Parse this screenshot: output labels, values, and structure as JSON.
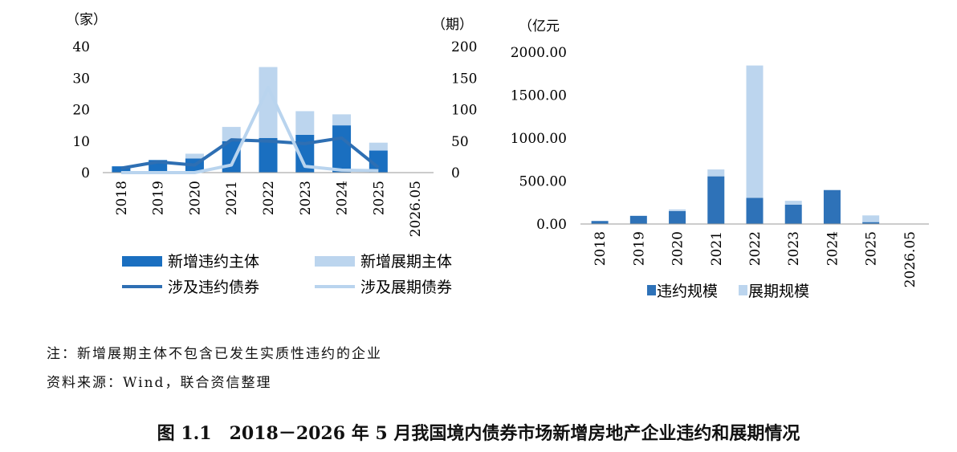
{
  "chart_data": [
    {
      "type": "bar",
      "categories": [
        "2018",
        "2019",
        "2020",
        "2021",
        "2022",
        "2023",
        "2024",
        "2025",
        "2026.05"
      ],
      "left_axis_unit": "（家）",
      "right_axis_unit": "（期）",
      "ylim_left": [
        0,
        40
      ],
      "yticks_left": [
        "0",
        "10",
        "20",
        "30",
        "40"
      ],
      "ylim_right": [
        0,
        200
      ],
      "yticks_right": [
        "0",
        "50",
        "100",
        "150",
        "200"
      ],
      "stacked": true,
      "bar_series": [
        {
          "name": "新增违约主体",
          "color": "#1a6fc0",
          "axis": "left",
          "values": [
            2,
            4,
            4.5,
            10,
            11,
            12,
            15,
            7,
            0
          ]
        },
        {
          "name": "新增展期主体",
          "color": "#bcd5ee",
          "axis": "left",
          "values": [
            0,
            0,
            1.5,
            4.5,
            22.5,
            7.5,
            3.5,
            2.5,
            0
          ]
        }
      ],
      "line_series": [
        {
          "name": "涉及违约债券",
          "color": "#2e6fb3",
          "axis": "right",
          "values": [
            7,
            17,
            12,
            52,
            50,
            46,
            55,
            8
          ]
        },
        {
          "name": "涉及展期债券",
          "color": "#b9d4ee",
          "axis": "right",
          "values": [
            0,
            0,
            0,
            12,
            135,
            10,
            4,
            3
          ]
        }
      ],
      "legend_position": "bottom",
      "grid": false
    },
    {
      "type": "bar",
      "categories": [
        "2018",
        "2019",
        "2020",
        "2021",
        "2022",
        "2023",
        "2024",
        "2025",
        "2026.05"
      ],
      "axis_unit": "（亿元",
      "ylim": [
        0,
        2000
      ],
      "yticks": [
        "0.00",
        "500.00",
        "1000.00",
        "1500.00",
        "2000.00"
      ],
      "stacked": true,
      "series": [
        {
          "name": "违约规模",
          "color": "#2e72b8",
          "values": [
            35,
            95,
            150,
            555,
            305,
            225,
            395,
            22,
            0
          ]
        },
        {
          "name": "展期规模",
          "color": "#bcd5ee",
          "values": [
            0,
            0,
            20,
            80,
            1540,
            45,
            0,
            78,
            0
          ]
        }
      ],
      "legend_position": "bottom",
      "grid": false
    }
  ],
  "notes": {
    "note1": "注：新增展期主体不包含已发生实质性违约的企业",
    "note2": "资料来源：Wind，联合资信整理"
  },
  "caption": "图 1.1　2018－2026 年 5 月我国境内债券市场新增房地产企业违约和展期情况"
}
